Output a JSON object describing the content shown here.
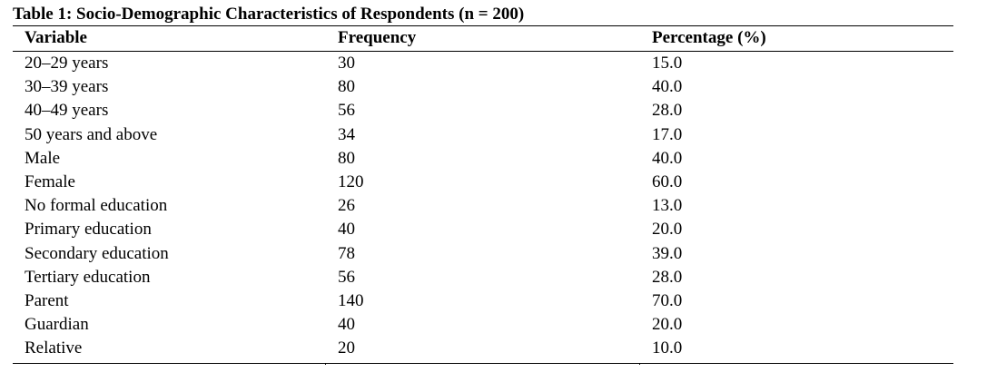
{
  "table": {
    "caption": "Table 1: Socio-Demographic Characteristics of Respondents (n = 200)",
    "headers": [
      "Variable",
      "Frequency",
      "Percentage (%)"
    ],
    "rows": [
      [
        "20–29 years",
        "30",
        "15.0"
      ],
      [
        "30–39 years",
        "80",
        "40.0"
      ],
      [
        "40–49 years",
        "56",
        "28.0"
      ],
      [
        "50 years and above",
        "34",
        "17.0"
      ],
      [
        "Male",
        "80",
        "40.0"
      ],
      [
        "Female",
        "120",
        "60.0"
      ],
      [
        "No formal education",
        "26",
        "13.0"
      ],
      [
        "Primary education",
        "40",
        "20.0"
      ],
      [
        "Secondary education",
        "78",
        "39.0"
      ],
      [
        "Tertiary education",
        "56",
        "28.0"
      ],
      [
        "Parent",
        "140",
        "70.0"
      ],
      [
        "Guardian",
        "40",
        "20.0"
      ],
      [
        "Relative",
        "20",
        "10.0"
      ]
    ]
  }
}
